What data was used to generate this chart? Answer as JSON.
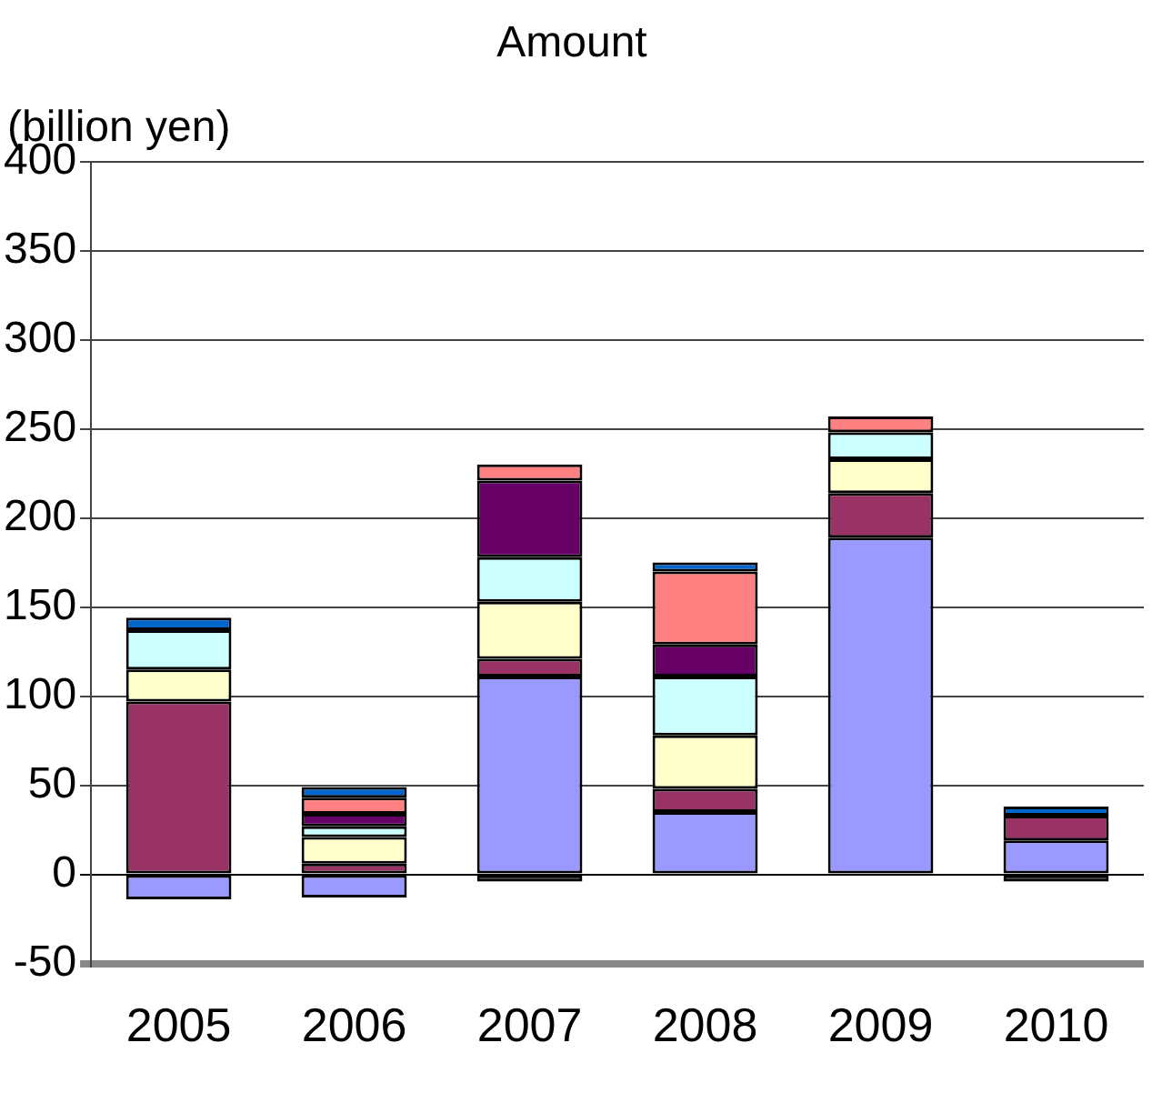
{
  "chart_data": {
    "type": "bar",
    "title": "Amount",
    "ylabel": "(billion yen)",
    "stacked": true,
    "categories": [
      "2005",
      "2006",
      "2007",
      "2008",
      "2009",
      "2010"
    ],
    "series": [
      {
        "color": "#9999ff",
        "values": [
          -14,
          -13,
          111,
          35,
          189,
          19
        ]
      },
      {
        "color": "#993366",
        "values": [
          97,
          6,
          10,
          13,
          25,
          14
        ]
      },
      {
        "color": "#ffffcc",
        "values": [
          18,
          15,
          32,
          30,
          19,
          null
        ]
      },
      {
        "color": "#ccffff",
        "values": [
          22,
          6,
          25,
          33,
          15,
          null
        ]
      },
      {
        "color": "#660066",
        "values": [
          null,
          7,
          43,
          18,
          null,
          null
        ]
      },
      {
        "color": "#ff8080",
        "values": [
          null,
          9,
          9,
          41,
          9,
          null
        ]
      },
      {
        "color": "#0066cc",
        "values": [
          7,
          6,
          null,
          5,
          null,
          5
        ]
      },
      {
        "color": "#000000",
        "values": [
          null,
          null,
          -4,
          null,
          null,
          -4
        ]
      }
    ],
    "ylim": [
      -50,
      400
    ],
    "yticks": [
      -50,
      0,
      50,
      100,
      150,
      200,
      250,
      300,
      350,
      400
    ],
    "grid": "y",
    "legend": false
  }
}
